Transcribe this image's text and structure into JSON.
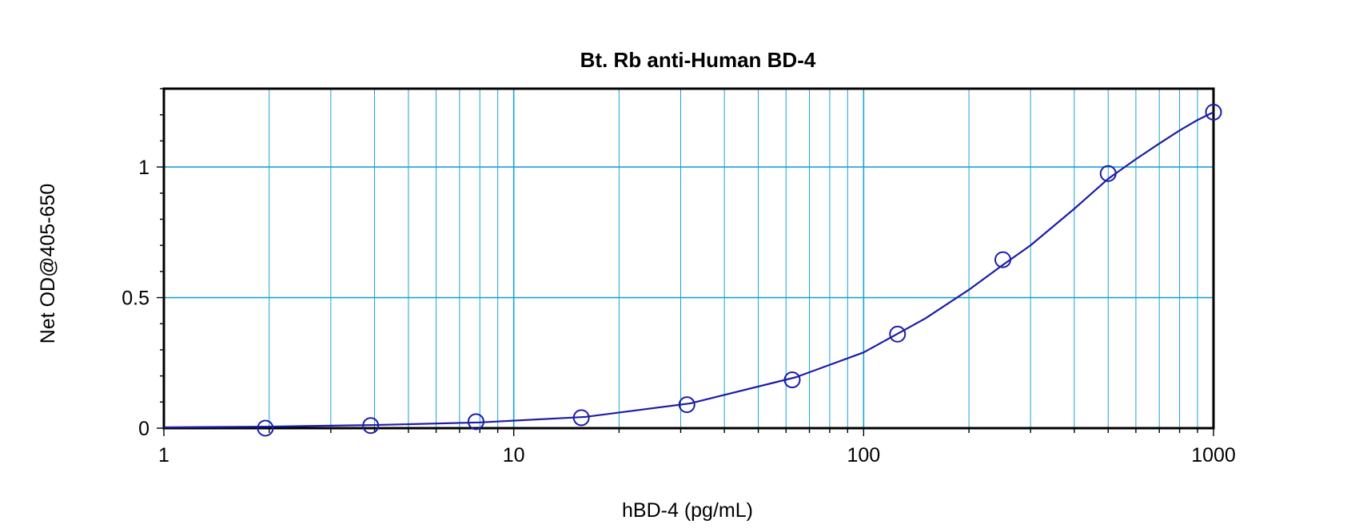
{
  "chart_data": {
    "type": "scatter",
    "title": "Bt. Rb anti-Human BD-4",
    "xlabel": "hBD-4 (pg/mL)",
    "ylabel": "Net OD@405-650",
    "x_scale": "log",
    "xlim": [
      1,
      1000
    ],
    "ylim": [
      0,
      1.3
    ],
    "x_ticks": [
      1,
      10,
      100,
      1000
    ],
    "x_tick_labels": [
      "1",
      "10",
      "100",
      "1000"
    ],
    "y_ticks": [
      0,
      0.5,
      1
    ],
    "y_tick_labels": [
      "0",
      "0.5",
      "1"
    ],
    "grid": true,
    "legend": false,
    "colors": {
      "series": "#1c1ca8",
      "grid": "#1ba3d2",
      "axes": "#000000"
    },
    "series": [
      {
        "marker": "open-circle",
        "points": [
          {
            "x": 1.95,
            "y": 0.0
          },
          {
            "x": 3.9,
            "y": 0.01
          },
          {
            "x": 7.8,
            "y": 0.025
          },
          {
            "x": 15.6,
            "y": 0.04
          },
          {
            "x": 31.25,
            "y": 0.09
          },
          {
            "x": 62.5,
            "y": 0.185
          },
          {
            "x": 125,
            "y": 0.36
          },
          {
            "x": 250,
            "y": 0.645
          },
          {
            "x": 500,
            "y": 0.975
          },
          {
            "x": 1000,
            "y": 1.21
          }
        ],
        "fit_curve": {
          "x": [
            1,
            2,
            4,
            8,
            16,
            32,
            64,
            100,
            150,
            200,
            250,
            300,
            400,
            500,
            600,
            700,
            800,
            900,
            1000
          ],
          "y": [
            0.003,
            0.006,
            0.012,
            0.022,
            0.043,
            0.095,
            0.195,
            0.29,
            0.42,
            0.53,
            0.625,
            0.7,
            0.84,
            0.955,
            1.03,
            1.09,
            1.14,
            1.18,
            1.21
          ]
        }
      }
    ]
  }
}
